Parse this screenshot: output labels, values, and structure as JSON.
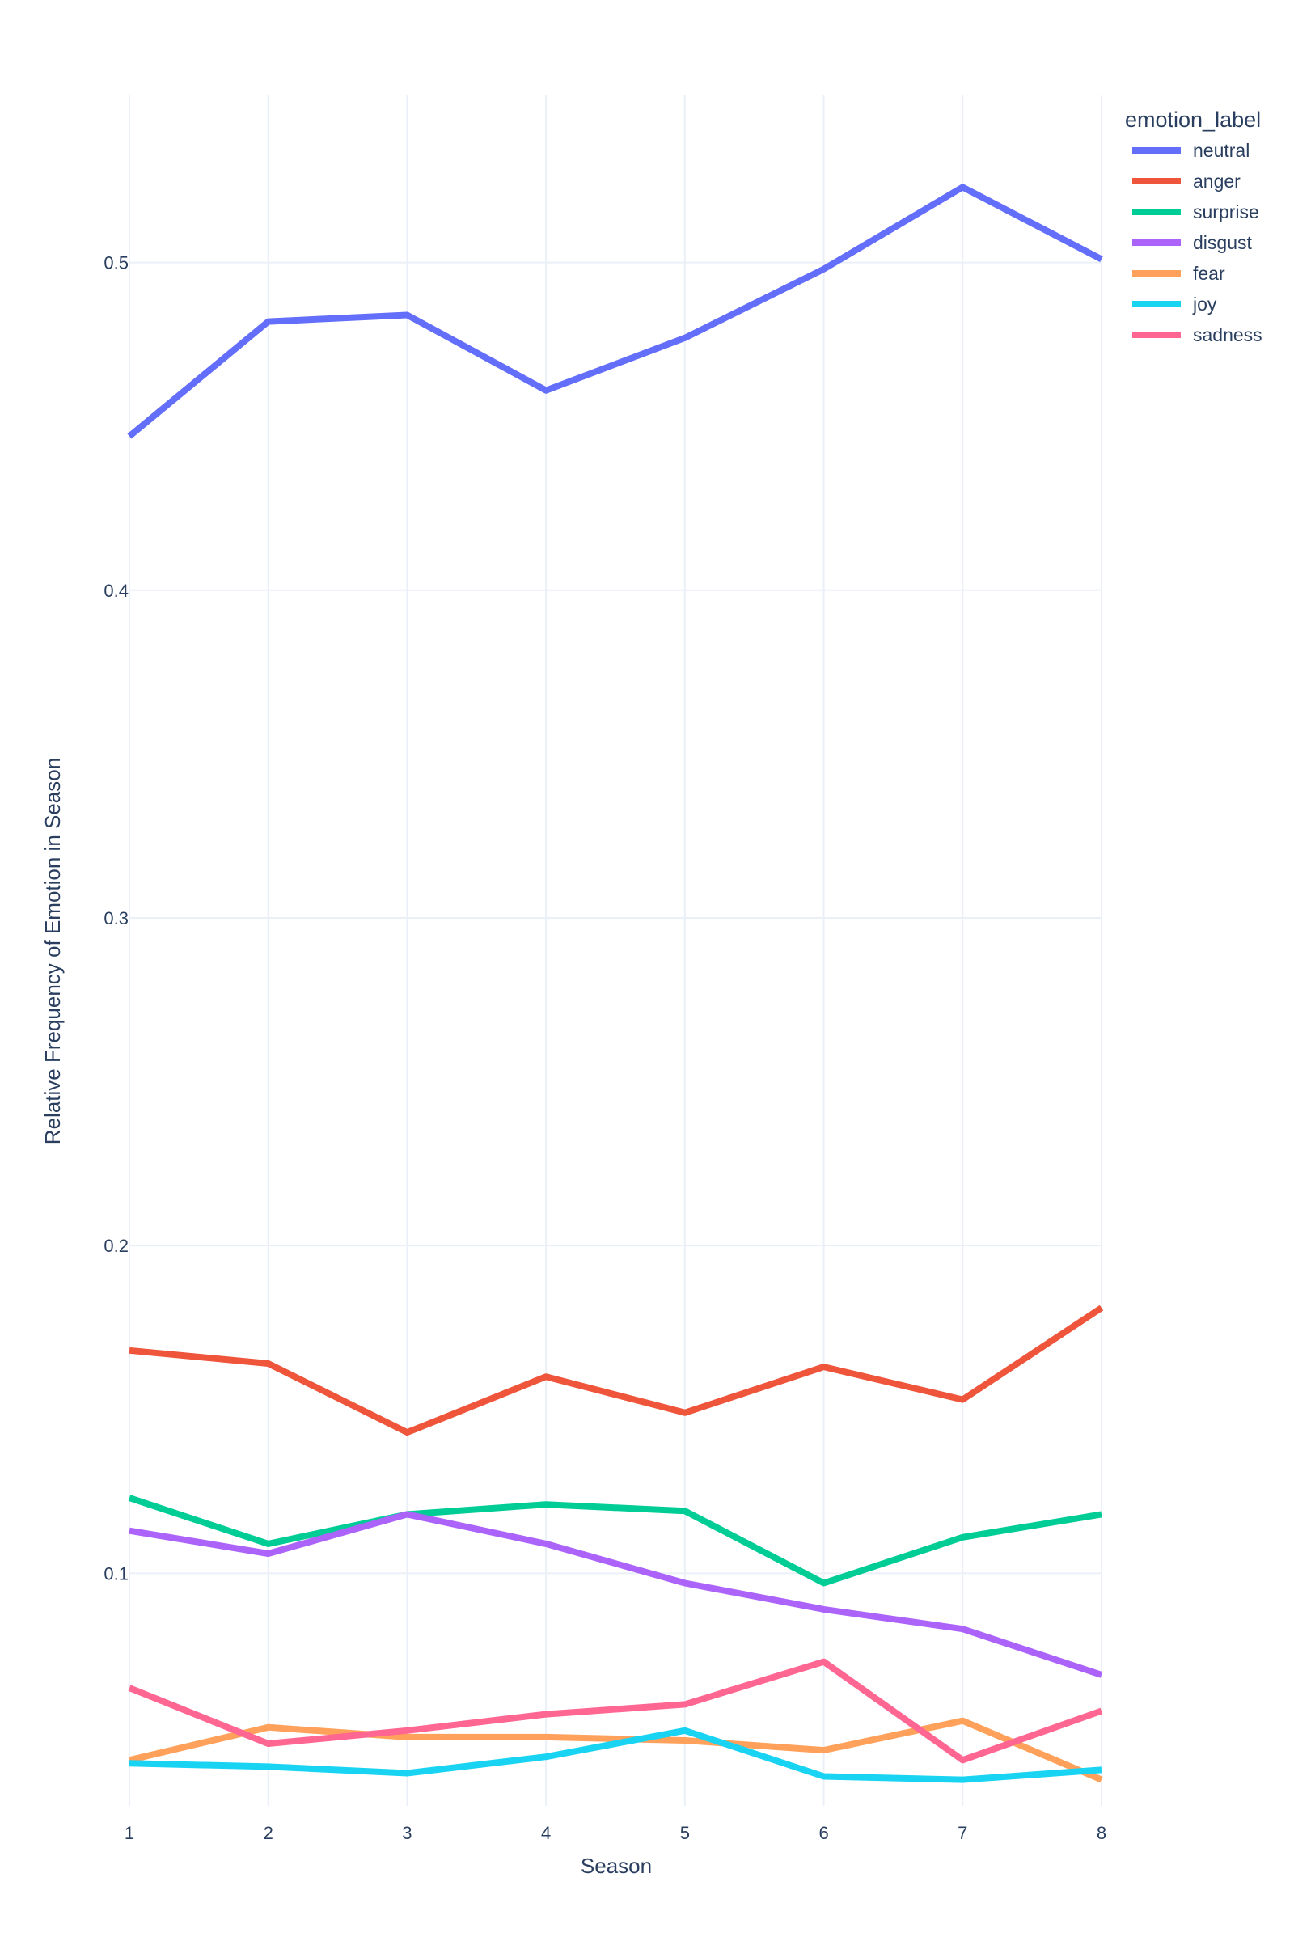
{
  "chart_data": {
    "type": "line",
    "title": "",
    "xlabel": "Season",
    "ylabel": "Relative Frequency of Emotion in Season",
    "x": [
      1,
      2,
      3,
      4,
      5,
      6,
      7,
      8
    ],
    "x_tick_labels": [
      "1",
      "2",
      "3",
      "4",
      "5",
      "6",
      "7",
      "8"
    ],
    "y_ticks": [
      0.1,
      0.2,
      0.3,
      0.4,
      0.5
    ],
    "y_tick_labels": [
      "0.1",
      "0.2",
      "0.3",
      "0.4",
      "0.5"
    ],
    "xlim": [
      1,
      8
    ],
    "ylim": [
      0.029,
      0.551
    ],
    "grid": true,
    "legend": {
      "title": "emotion_label",
      "placement": "top-right"
    },
    "series": [
      {
        "name": "neutral",
        "color": "#636efa",
        "values": [
          0.447,
          0.482,
          0.484,
          0.461,
          0.477,
          0.498,
          0.523,
          0.501
        ]
      },
      {
        "name": "anger",
        "color": "#ef553b",
        "values": [
          0.168,
          0.164,
          0.143,
          0.16,
          0.149,
          0.163,
          0.153,
          0.181
        ]
      },
      {
        "name": "surprise",
        "color": "#00cc96",
        "values": [
          0.123,
          0.109,
          0.118,
          0.121,
          0.119,
          0.097,
          0.111,
          0.118
        ]
      },
      {
        "name": "disgust",
        "color": "#ab63fa",
        "values": [
          0.113,
          0.106,
          0.118,
          0.109,
          0.097,
          0.089,
          0.083,
          0.069
        ]
      },
      {
        "name": "fear",
        "color": "#ffa15a",
        "values": [
          0.043,
          0.053,
          0.05,
          0.05,
          0.049,
          0.046,
          0.055,
          0.037
        ]
      },
      {
        "name": "joy",
        "color": "#19d3f3",
        "values": [
          0.042,
          0.041,
          0.039,
          0.044,
          0.052,
          0.038,
          0.037,
          0.04
        ]
      },
      {
        "name": "sadness",
        "color": "#ff6692",
        "values": [
          0.065,
          0.048,
          0.052,
          0.057,
          0.06,
          0.073,
          0.043,
          0.058
        ]
      }
    ]
  }
}
